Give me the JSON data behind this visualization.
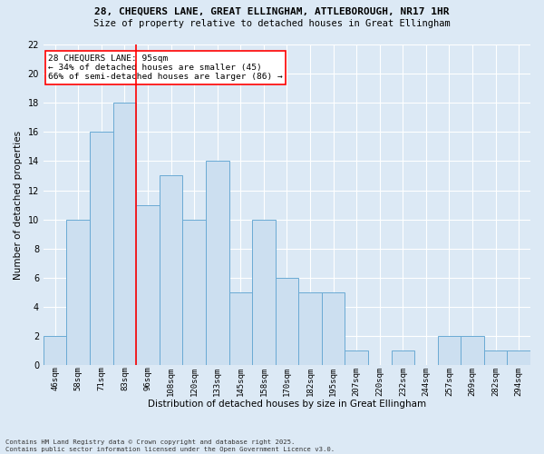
{
  "title_line1": "28, CHEQUERS LANE, GREAT ELLINGHAM, ATTLEBOROUGH, NR17 1HR",
  "title_line2": "Size of property relative to detached houses in Great Ellingham",
  "xlabel": "Distribution of detached houses by size in Great Ellingham",
  "ylabel": "Number of detached properties",
  "bin_labels": [
    "46sqm",
    "58sqm",
    "71sqm",
    "83sqm",
    "96sqm",
    "108sqm",
    "120sqm",
    "133sqm",
    "145sqm",
    "158sqm",
    "170sqm",
    "182sqm",
    "195sqm",
    "207sqm",
    "220sqm",
    "232sqm",
    "244sqm",
    "257sqm",
    "269sqm",
    "282sqm",
    "294sqm"
  ],
  "bar_values": [
    2,
    10,
    16,
    18,
    11,
    13,
    10,
    14,
    5,
    10,
    6,
    5,
    5,
    1,
    0,
    1,
    0,
    2,
    2,
    1,
    1
  ],
  "bar_color": "#ccdff0",
  "bar_edge_color": "#6aaad4",
  "red_line_index": 4,
  "annotation_text": "28 CHEQUERS LANE: 95sqm\n← 34% of detached houses are smaller (45)\n66% of semi-detached houses are larger (86) →",
  "annotation_box_color": "white",
  "annotation_box_edge_color": "red",
  "red_line_color": "red",
  "ylim": [
    0,
    22
  ],
  "yticks": [
    0,
    2,
    4,
    6,
    8,
    10,
    12,
    14,
    16,
    18,
    20,
    22
  ],
  "footnote": "Contains HM Land Registry data © Crown copyright and database right 2025.\nContains public sector information licensed under the Open Government Licence v3.0.",
  "background_color": "#dce9f5",
  "grid_color": "white"
}
